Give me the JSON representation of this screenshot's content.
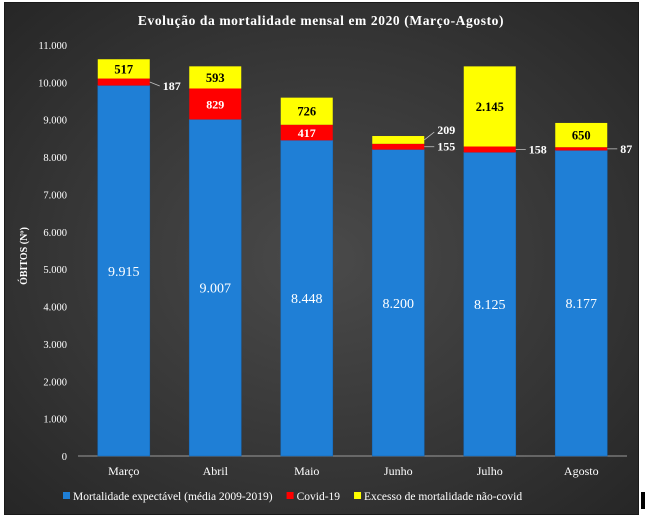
{
  "chart_data": {
    "type": "stacked-bar",
    "title": "Evolução  da  mortalidade  mensal  em 2020 (Março-Agosto)",
    "ylabel": "ÓBITOS (Nº)",
    "xlabel": "",
    "categories": [
      "Março",
      "Abril",
      "Maio",
      "Junho",
      "Julho",
      "Agosto"
    ],
    "ylim": [
      0,
      11000
    ],
    "yticks": [
      0,
      1000,
      2000,
      3000,
      4000,
      5000,
      6000,
      7000,
      8000,
      9000,
      10000,
      11000
    ],
    "ytick_labels": [
      "0",
      "1.000",
      "2.000",
      "3.000",
      "4.000",
      "5.000",
      "6.000",
      "7.000",
      "8.000",
      "9.000",
      "10.000",
      "11.000"
    ],
    "series": [
      {
        "name": "Mortalidade expectável (média 2009-2019)",
        "color": "#1f7fd6",
        "values": [
          9915,
          9007,
          8448,
          8200,
          8125,
          8177
        ],
        "labels": [
          "9.915",
          "9.007",
          "8.448",
          "8.200",
          "8.125",
          "8.177"
        ]
      },
      {
        "name": "Covid-19",
        "color": "#ff0000",
        "values": [
          187,
          829,
          417,
          155,
          158,
          87
        ],
        "labels": [
          "187",
          "829",
          "417",
          "155",
          "158",
          "87"
        ]
      },
      {
        "name": "Excesso de mortalidade não-covid",
        "color": "#ffff00",
        "values": [
          517,
          593,
          726,
          209,
          2145,
          650
        ],
        "labels": [
          "517",
          "593",
          "726",
          "209",
          "2.145",
          "650"
        ]
      }
    ],
    "grid": false,
    "legend_position": "bottom"
  }
}
